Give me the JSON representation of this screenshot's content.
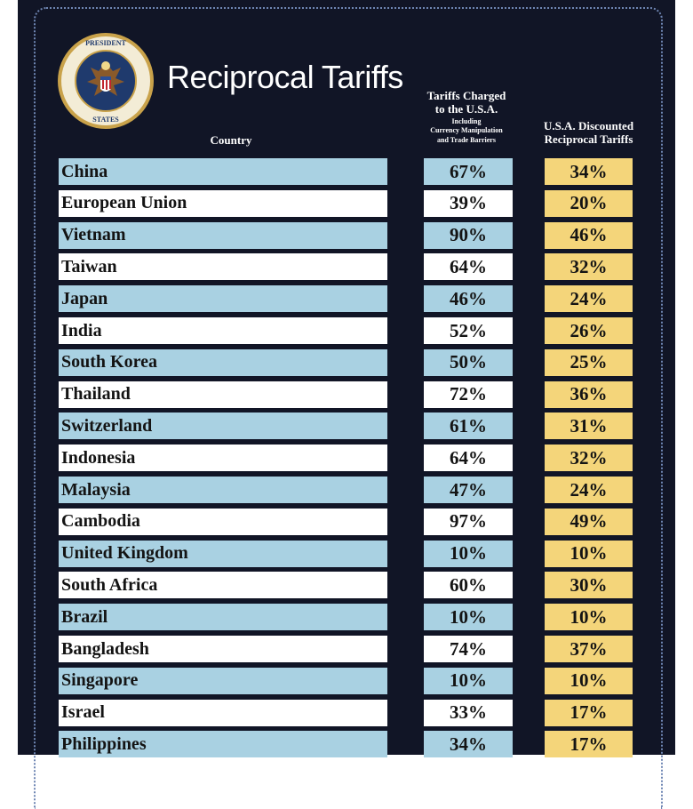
{
  "header": {
    "title": "Reciprocal Tariffs",
    "seal_text": "SEAL OF THE PRESIDENT OF THE UNITED STATES",
    "col_country": "Country",
    "col_charged_line1": "Tariffs Charged",
    "col_charged_line2": "to the U.S.A.",
    "col_charged_sub1": "Including",
    "col_charged_sub2": "Currency Manipulation",
    "col_charged_sub3": "and Trade Barriers",
    "col_discounted_line1": "U.S.A. Discounted",
    "col_discounted_line2": "Reciprocal Tariffs"
  },
  "colors": {
    "background": "#111526",
    "row_blue": "#a9d1e2",
    "row_white": "#ffffff",
    "discount_gold": "#f4d57a"
  },
  "rows": [
    {
      "country": "China",
      "charged": "67%",
      "discounted": "34%"
    },
    {
      "country": "European Union",
      "charged": "39%",
      "discounted": "20%"
    },
    {
      "country": "Vietnam",
      "charged": "90%",
      "discounted": "46%"
    },
    {
      "country": "Taiwan",
      "charged": "64%",
      "discounted": "32%"
    },
    {
      "country": "Japan",
      "charged": "46%",
      "discounted": "24%"
    },
    {
      "country": "India",
      "charged": "52%",
      "discounted": "26%"
    },
    {
      "country": "South Korea",
      "charged": "50%",
      "discounted": "25%"
    },
    {
      "country": "Thailand",
      "charged": "72%",
      "discounted": "36%"
    },
    {
      "country": "Switzerland",
      "charged": "61%",
      "discounted": "31%"
    },
    {
      "country": "Indonesia",
      "charged": "64%",
      "discounted": "32%"
    },
    {
      "country": "Malaysia",
      "charged": "47%",
      "discounted": "24%"
    },
    {
      "country": "Cambodia",
      "charged": "97%",
      "discounted": "49%"
    },
    {
      "country": "United Kingdom",
      "charged": "10%",
      "discounted": "10%"
    },
    {
      "country": "South Africa",
      "charged": "60%",
      "discounted": "30%"
    },
    {
      "country": "Brazil",
      "charged": "10%",
      "discounted": "10%"
    },
    {
      "country": "Bangladesh",
      "charged": "74%",
      "discounted": "37%"
    },
    {
      "country": "Singapore",
      "charged": "10%",
      "discounted": "10%"
    },
    {
      "country": "Israel",
      "charged": "33%",
      "discounted": "17%"
    },
    {
      "country": "Philippines",
      "charged": "34%",
      "discounted": "17%"
    }
  ]
}
